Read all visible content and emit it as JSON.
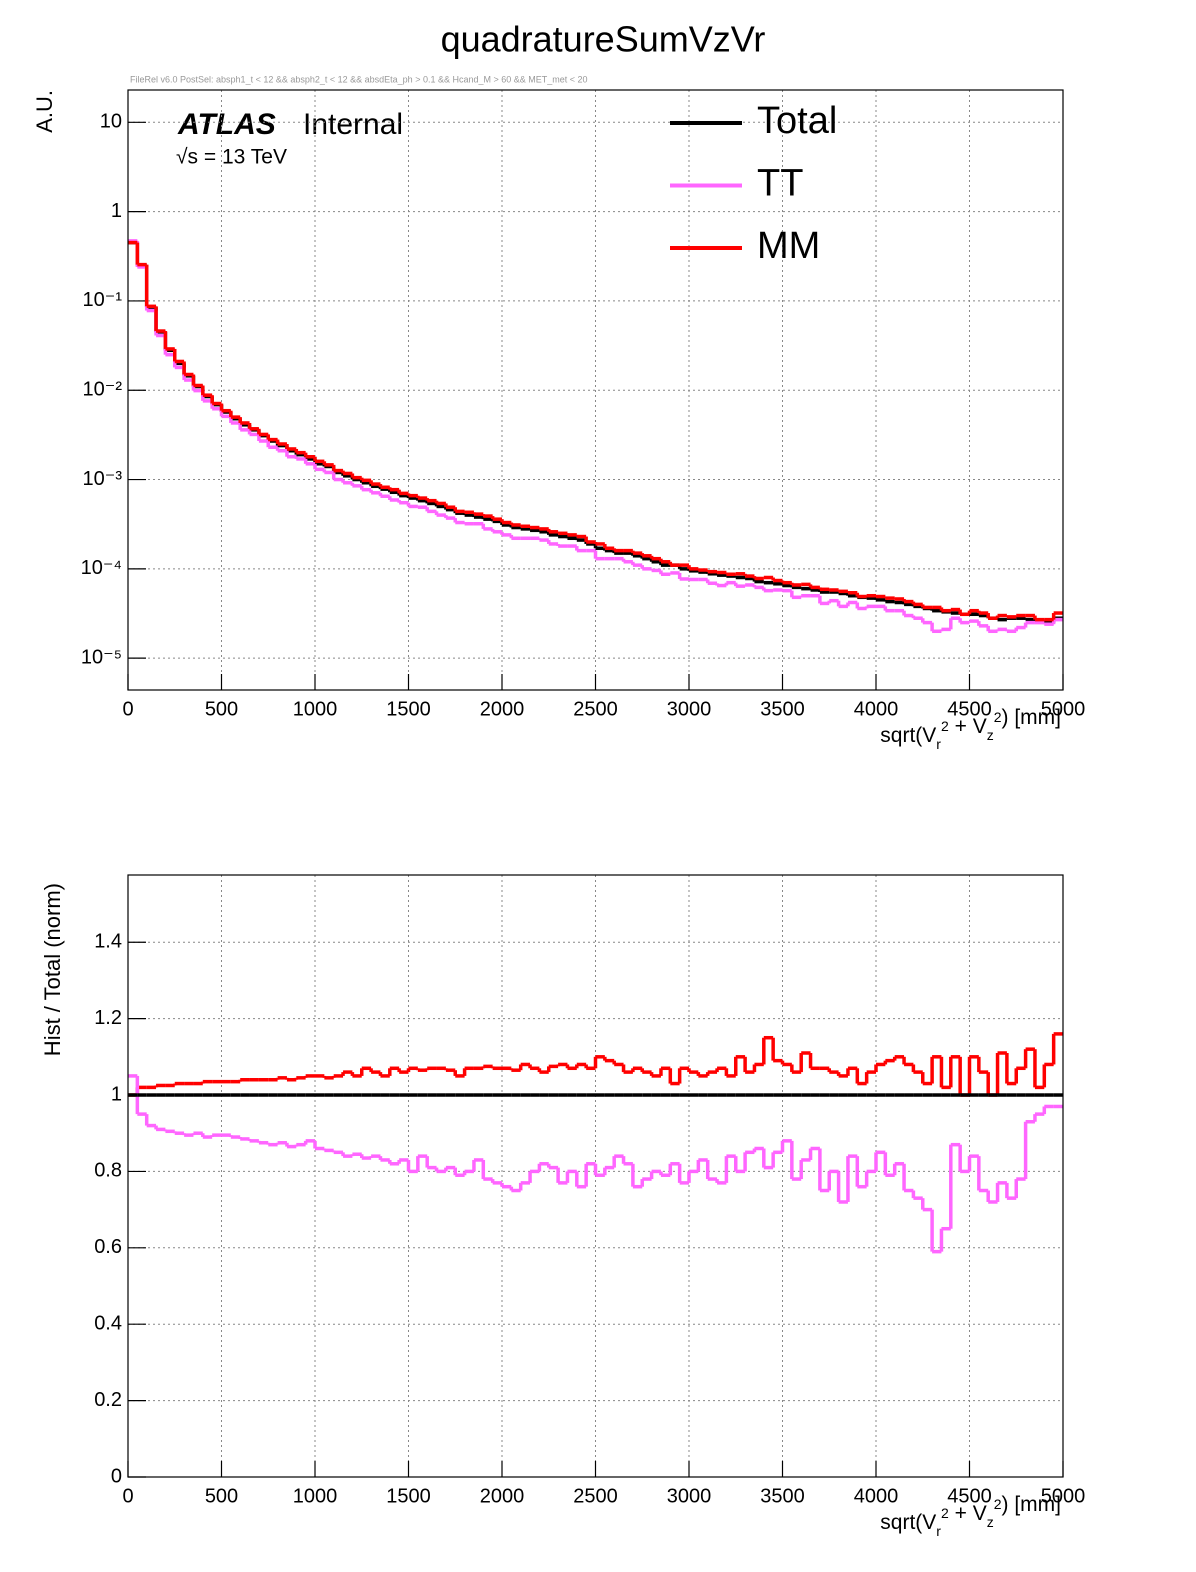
{
  "chart_data": [
    {
      "type": "histogram",
      "title": "quadratureSumVzVr",
      "subtitle": "FileRel v6.0 PostSel:  absph1_t < 12 && absph2_t < 12 && absdEta_ph > 0.1 && Hcand_M > 60 && MET_met < 20",
      "y_label": "A.U.",
      "x_label": "sqrt(V_r^2 + V_z^2) [mm]",
      "annotations": [
        "ATLAS",
        "Internal",
        "√s = 13 TeV"
      ],
      "log_y": true,
      "grid": true,
      "legend": "upper right",
      "xlim": [
        0,
        5000
      ],
      "xticks": [
        0,
        500,
        1000,
        1500,
        2000,
        2500,
        3000,
        3500,
        4000,
        4500,
        5000
      ],
      "ylim": [
        4.4e-06,
        23
      ],
      "yticks": [
        {
          "value": 1e-05,
          "label": "10⁻⁵"
        },
        {
          "value": 0.0001,
          "label": "10⁻⁴"
        },
        {
          "value": 0.001,
          "label": "10⁻³"
        },
        {
          "value": 0.01,
          "label": "10⁻²"
        },
        {
          "value": 0.1,
          "label": "10⁻¹"
        },
        1,
        10
      ],
      "bins": [
        0,
        50,
        100,
        150,
        200,
        250,
        300,
        350,
        400,
        450,
        500,
        550,
        600,
        650,
        700,
        750,
        800,
        850,
        900,
        950,
        1000,
        1050,
        1100,
        1150,
        1200,
        1250,
        1300,
        1350,
        1400,
        1450,
        1500,
        1550,
        1600,
        1650,
        1700,
        1750,
        1800,
        1850,
        1900,
        1950,
        2000,
        2050,
        2100,
        2150,
        2200,
        2250,
        2300,
        2350,
        2400,
        2450,
        2500,
        2550,
        2600,
        2650,
        2700,
        2750,
        2800,
        2850,
        2900,
        2950,
        3000,
        3050,
        3100,
        3150,
        3200,
        3250,
        3300,
        3350,
        3400,
        3450,
        3500,
        3550,
        3600,
        3650,
        3700,
        3750,
        3800,
        3850,
        3900,
        3950,
        4000,
        4050,
        4100,
        4150,
        4200,
        4250,
        4300,
        4350,
        4400,
        4450,
        4500,
        4550,
        4600,
        4650,
        4700,
        4750,
        4800,
        4850,
        4900,
        4950,
        5000
      ],
      "series": [
        {
          "name": "Total",
          "color": "#000000",
          "values": [
            0.45,
            0.25,
            0.085,
            0.045,
            0.028,
            0.02,
            0.0145,
            0.011,
            0.0085,
            0.0069,
            0.0057,
            0.0048,
            0.0041,
            0.0036,
            0.0031,
            0.0027,
            0.0024,
            0.0021,
            0.0019,
            0.0017,
            0.0015,
            0.0014,
            0.0012,
            0.0011,
            0.001,
            0.00092,
            0.00084,
            0.00078,
            0.00072,
            0.00066,
            0.00062,
            0.00058,
            0.00054,
            0.0005,
            0.00046,
            0.00042,
            0.0004,
            0.00038,
            0.00036,
            0.00034,
            0.00031,
            0.00029,
            0.00028,
            0.00027,
            0.00026,
            0.00024,
            0.00023,
            0.00022,
            0.00021,
            0.00019,
            0.00017,
            0.00016,
            0.00015,
            0.00015,
            0.00014,
            0.00013,
            0.00012,
            0.00011,
            0.00011,
            0.0001,
            9.5e-05,
            9.2e-05,
            8.8e-05,
            8.5e-05,
            8.3e-05,
            8e-05,
            7.8e-05,
            7.2e-05,
            7e-05,
            6.8e-05,
            6.5e-05,
            6.2e-05,
            6e-05,
            5.8e-05,
            5.5e-05,
            5.5e-05,
            5.3e-05,
            5e-05,
            4.8e-05,
            4.7e-05,
            4.5e-05,
            4.3e-05,
            4.2e-05,
            4e-05,
            3.8e-05,
            3.6e-05,
            3.4e-05,
            3.3e-05,
            3.2e-05,
            3.1e-05,
            3.1e-05,
            3e-05,
            2.8e-05,
            2.7e-05,
            2.8e-05,
            2.8e-05,
            2.7e-05,
            2.6e-05,
            2.5e-05,
            2.8e-05
          ]
        },
        {
          "name": "TT",
          "color": "#ff66ff",
          "values": [
            0.47,
            0.24,
            0.078,
            0.041,
            0.025,
            0.018,
            0.013,
            0.0099,
            0.0076,
            0.0062,
            0.0051,
            0.0043,
            0.0036,
            0.0032,
            0.0027,
            0.0023,
            0.0021,
            0.0018,
            0.0017,
            0.0015,
            0.0013,
            0.0012,
            0.001,
            0.00092,
            0.00085,
            0.00077,
            0.00071,
            0.00065,
            0.00059,
            0.00055,
            0.0005,
            0.00049,
            0.00044,
            0.0004,
            0.00037,
            0.00033,
            0.00032,
            0.00032,
            0.00028,
            0.00026,
            0.00024,
            0.00022,
            0.00022,
            0.00022,
            0.00021,
            0.00019,
            0.00018,
            0.00018,
            0.00016,
            0.00016,
            0.00013,
            0.00013,
            0.00013,
            0.00012,
            0.00011,
            0.0001,
            9.6e-05,
            8.7e-05,
            9e-05,
            7.7e-05,
            7.6e-05,
            7.6e-05,
            6.9e-05,
            6.5e-05,
            7e-05,
            6.4e-05,
            6.6e-05,
            6.2e-05,
            5.7e-05,
            5.8e-05,
            5.7e-05,
            4.8e-05,
            5e-05,
            5e-05,
            4.1e-05,
            4.4e-05,
            3.8e-05,
            4.2e-05,
            3.6e-05,
            3.8e-05,
            3.8e-05,
            3.4e-05,
            3.4e-05,
            3e-05,
            2.8e-05,
            2.5e-05,
            2e-05,
            2.1e-05,
            2.8e-05,
            2.5e-05,
            2.6e-05,
            2.3e-05,
            2e-05,
            2.1e-05,
            2e-05,
            2.2e-05,
            2.5e-05,
            2.5e-05,
            2.4e-05,
            2.7e-05
          ]
        },
        {
          "name": "MM",
          "color": "#ff0000",
          "values": [
            0.45,
            0.255,
            0.087,
            0.046,
            0.029,
            0.021,
            0.015,
            0.0113,
            0.0088,
            0.0071,
            0.0059,
            0.005,
            0.0043,
            0.0037,
            0.0032,
            0.0028,
            0.0025,
            0.0022,
            0.002,
            0.0018,
            0.0016,
            0.00146,
            0.00126,
            0.00117,
            0.00105,
            0.00098,
            0.00089,
            0.00082,
            0.00077,
            0.0007,
            0.00066,
            0.00062,
            0.00058,
            0.00054,
            0.00049,
            0.00044,
            0.00043,
            0.00041,
            0.00039,
            0.00036,
            0.00033,
            0.00031,
            0.0003,
            0.00029,
            0.00028,
            0.00026,
            0.00025,
            0.00024,
            0.00023,
            0.0002,
            0.00019,
            0.00017,
            0.00016,
            0.00016,
            0.00015,
            0.00014,
            0.00013,
            0.00012,
            0.00011,
            0.00011,
            0.0001,
            9.7e-05,
            9.3e-05,
            9.1e-05,
            8.7e-05,
            8.8e-05,
            8.3e-05,
            7.8e-05,
            8e-05,
            7.4e-05,
            7e-05,
            6.6e-05,
            6.7e-05,
            6.2e-05,
            5.9e-05,
            5.8e-05,
            5.6e-05,
            5.4e-05,
            4.9e-05,
            5e-05,
            4.9e-05,
            4.7e-05,
            4.6e-05,
            4.3e-05,
            4e-05,
            3.7e-05,
            3.7e-05,
            3.4e-05,
            3.5e-05,
            3.1e-05,
            3.4e-05,
            3.2e-05,
            2.8e-05,
            3e-05,
            2.9e-05,
            3e-05,
            3e-05,
            2.7e-05,
            2.7e-05,
            3.2e-05
          ]
        }
      ]
    },
    {
      "type": "histogram",
      "y_label": "Hist / Total (norm)",
      "x_label": "sqrt(V_r^2 + V_z^2) [mm]",
      "grid": true,
      "xlim": [
        0,
        5000
      ],
      "xticks": [
        0,
        500,
        1000,
        1500,
        2000,
        2500,
        3000,
        3500,
        4000,
        4500,
        5000
      ],
      "ylim": [
        0,
        1.576
      ],
      "yticks": [
        0,
        0.2,
        0.4,
        0.6,
        0.8,
        1,
        1.2,
        1.4
      ],
      "bins": [
        0,
        50,
        100,
        150,
        200,
        250,
        300,
        350,
        400,
        450,
        500,
        550,
        600,
        650,
        700,
        750,
        800,
        850,
        900,
        950,
        1000,
        1050,
        1100,
        1150,
        1200,
        1250,
        1300,
        1350,
        1400,
        1450,
        1500,
        1550,
        1600,
        1650,
        1700,
        1750,
        1800,
        1850,
        1900,
        1950,
        2000,
        2050,
        2100,
        2150,
        2200,
        2250,
        2300,
        2350,
        2400,
        2450,
        2500,
        2550,
        2600,
        2650,
        2700,
        2750,
        2800,
        2850,
        2900,
        2950,
        3000,
        3050,
        3100,
        3150,
        3200,
        3250,
        3300,
        3350,
        3400,
        3450,
        3500,
        3550,
        3600,
        3650,
        3700,
        3750,
        3800,
        3850,
        3900,
        3950,
        4000,
        4050,
        4100,
        4150,
        4200,
        4250,
        4300,
        4350,
        4400,
        4450,
        4500,
        4550,
        4600,
        4650,
        4700,
        4750,
        4800,
        4850,
        4900,
        4950,
        5000
      ],
      "series": [
        {
          "name": "MM",
          "color": "#ff0000",
          "values": [
            1.0,
            1.02,
            1.02,
            1.025,
            1.025,
            1.03,
            1.03,
            1.03,
            1.035,
            1.035,
            1.035,
            1.035,
            1.04,
            1.04,
            1.04,
            1.04,
            1.045,
            1.04,
            1.045,
            1.05,
            1.05,
            1.045,
            1.05,
            1.06,
            1.05,
            1.07,
            1.06,
            1.05,
            1.07,
            1.06,
            1.07,
            1.065,
            1.07,
            1.07,
            1.065,
            1.05,
            1.07,
            1.07,
            1.075,
            1.07,
            1.07,
            1.065,
            1.08,
            1.07,
            1.06,
            1.075,
            1.08,
            1.07,
            1.08,
            1.07,
            1.1,
            1.09,
            1.08,
            1.06,
            1.07,
            1.06,
            1.05,
            1.07,
            1.03,
            1.07,
            1.06,
            1.05,
            1.06,
            1.07,
            1.05,
            1.1,
            1.06,
            1.08,
            1.15,
            1.09,
            1.08,
            1.06,
            1.11,
            1.07,
            1.07,
            1.06,
            1.05,
            1.07,
            1.03,
            1.06,
            1.08,
            1.09,
            1.1,
            1.08,
            1.06,
            1.03,
            1.1,
            1.02,
            1.1,
            1.0,
            1.1,
            1.06,
            1.0,
            1.11,
            1.03,
            1.07,
            1.12,
            1.02,
            1.08,
            1.16
          ]
        },
        {
          "name": "TT",
          "color": "#ff66ff",
          "values": [
            1.05,
            0.95,
            0.92,
            0.91,
            0.905,
            0.9,
            0.895,
            0.9,
            0.89,
            0.895,
            0.895,
            0.89,
            0.885,
            0.88,
            0.875,
            0.87,
            0.875,
            0.865,
            0.87,
            0.88,
            0.86,
            0.855,
            0.85,
            0.84,
            0.845,
            0.835,
            0.84,
            0.83,
            0.82,
            0.83,
            0.8,
            0.84,
            0.81,
            0.8,
            0.81,
            0.79,
            0.8,
            0.83,
            0.78,
            0.77,
            0.76,
            0.75,
            0.77,
            0.8,
            0.82,
            0.81,
            0.77,
            0.8,
            0.76,
            0.82,
            0.79,
            0.81,
            0.84,
            0.82,
            0.76,
            0.78,
            0.8,
            0.79,
            0.82,
            0.77,
            0.8,
            0.83,
            0.78,
            0.77,
            0.84,
            0.8,
            0.85,
            0.86,
            0.81,
            0.85,
            0.88,
            0.78,
            0.83,
            0.86,
            0.75,
            0.8,
            0.72,
            0.84,
            0.76,
            0.8,
            0.85,
            0.79,
            0.82,
            0.75,
            0.73,
            0.7,
            0.59,
            0.65,
            0.87,
            0.8,
            0.84,
            0.75,
            0.72,
            0.77,
            0.73,
            0.78,
            0.93,
            0.95,
            0.97,
            0.97
          ]
        },
        {
          "name": "Total",
          "color": "#000000",
          "values": [
            1,
            1,
            1,
            1,
            1,
            1,
            1,
            1,
            1,
            1,
            1,
            1,
            1,
            1,
            1,
            1,
            1,
            1,
            1,
            1,
            1,
            1,
            1,
            1,
            1,
            1,
            1,
            1,
            1,
            1,
            1,
            1,
            1,
            1,
            1,
            1,
            1,
            1,
            1,
            1,
            1,
            1,
            1,
            1,
            1,
            1,
            1,
            1,
            1,
            1,
            1,
            1,
            1,
            1,
            1,
            1,
            1,
            1,
            1,
            1,
            1,
            1,
            1,
            1,
            1,
            1,
            1,
            1,
            1,
            1,
            1,
            1,
            1,
            1,
            1,
            1,
            1,
            1,
            1,
            1,
            1,
            1,
            1,
            1,
            1,
            1,
            1,
            1,
            1,
            1,
            1,
            1,
            1,
            1,
            1,
            1,
            1,
            1,
            1,
            1
          ]
        }
      ]
    }
  ]
}
